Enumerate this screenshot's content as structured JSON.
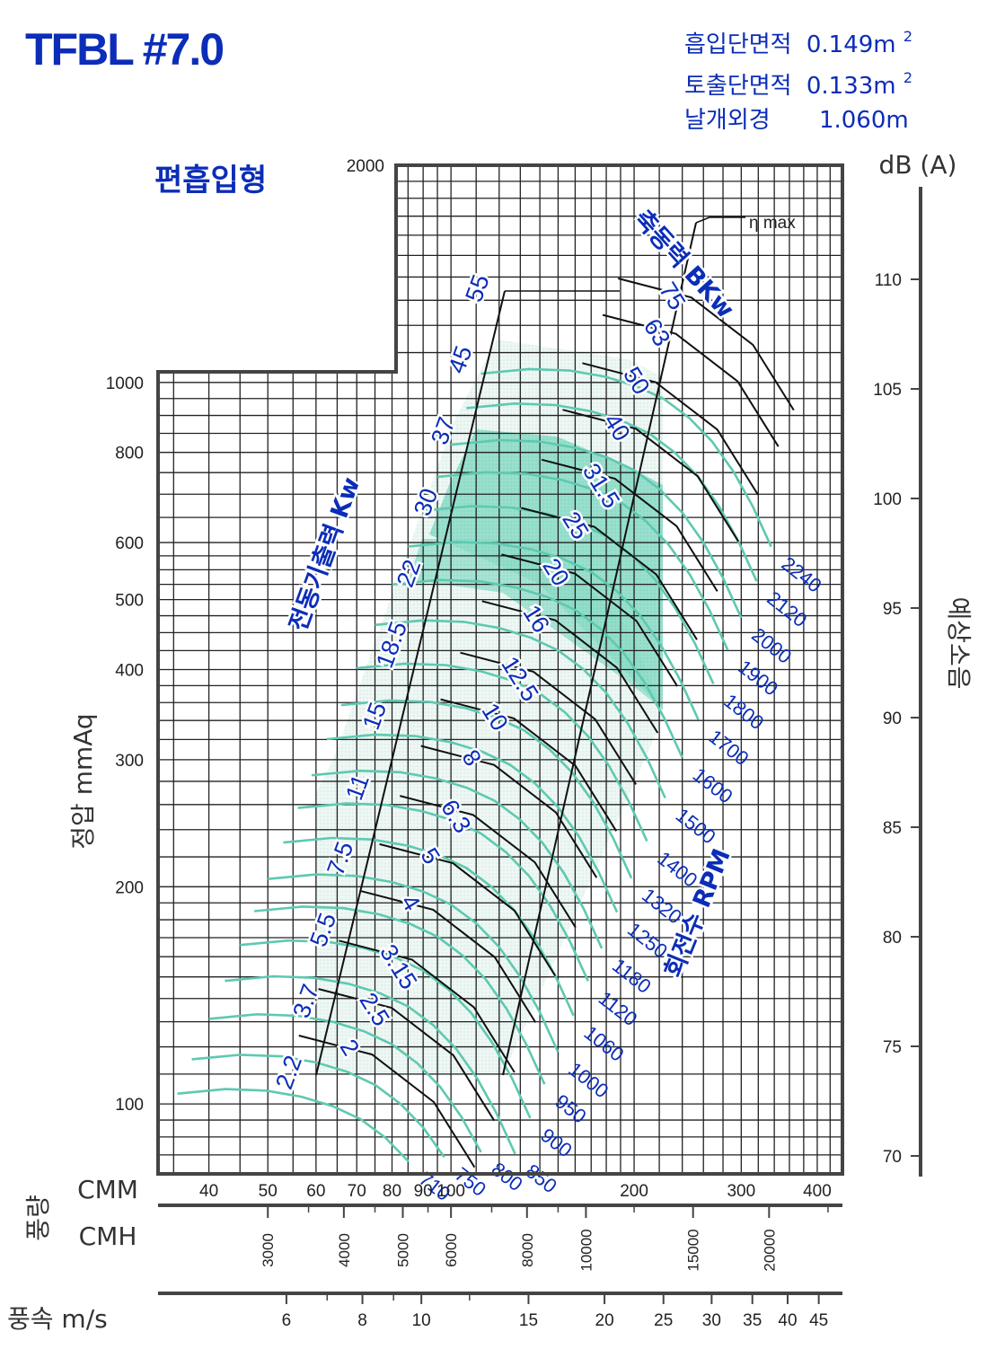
{
  "title": "TFBL #7.0",
  "specs": [
    {
      "label": "흡입단면적",
      "value": "0.149m",
      "sup": "2"
    },
    {
      "label": "토출단면적",
      "value": "0.133m",
      "sup": "2"
    },
    {
      "label": "날개외경",
      "value": "1.060m",
      "sup": ""
    }
  ],
  "fan_type": "편흡입형",
  "chart_data": {
    "type": "line",
    "title": "TFBL #7.0",
    "xlabel": "풍량",
    "x_units": [
      "CMM",
      "CMH"
    ],
    "ylabel": "정압 mmAq",
    "y2label": "예상소음",
    "y2_unit": "dB (A)",
    "x_scale": "log",
    "y_scale": "log",
    "xlim": [
      33,
      440
    ],
    "ylim": [
      80,
      2000
    ],
    "y2lim": [
      69,
      116
    ],
    "x_ticks_cmm": [
      40,
      50,
      60,
      70,
      80,
      90,
      100,
      200,
      300,
      400
    ],
    "x_ticks_cmh": [
      3000,
      4000,
      5000,
      6000,
      8000,
      10000,
      15000,
      20000
    ],
    "x_ticks_velocity_label": "풍속 m/s",
    "x_ticks_velocity": [
      6,
      8,
      10,
      15,
      20,
      25,
      30,
      35,
      40,
      45
    ],
    "y_ticks": [
      100,
      200,
      300,
      400,
      500,
      600,
      800,
      1000,
      2000
    ],
    "y2_ticks": [
      70,
      75,
      80,
      85,
      90,
      95,
      100,
      105,
      110
    ],
    "grid": true,
    "rpm_label": "회전수 RPM",
    "rpm_curves": [
      710,
      750,
      800,
      850,
      900,
      950,
      1000,
      1060,
      1120,
      1180,
      1250,
      1320,
      1400,
      1500,
      1600,
      1700,
      1800,
      1900,
      2000,
      2120,
      2240
    ],
    "shaft_power_label": "축동력 BKw",
    "shaft_power_kw": [
      2.0,
      2.5,
      3.15,
      4.0,
      5.0,
      6.3,
      8.0,
      10,
      12.5,
      16,
      20,
      25,
      31.5,
      40,
      50,
      63,
      75
    ],
    "motor_output_label": "전동기출력 Kw",
    "motor_output_kw": [
      2.2,
      3.7,
      5.5,
      7.5,
      11,
      15,
      18.5,
      22,
      30,
      37,
      45,
      55
    ],
    "efficiency_label": "η max"
  },
  "colors": {
    "blue": "#0b2db8",
    "rpm_curve": "#5ec9b0",
    "shade": "#8fdcc9",
    "grid": "#222222"
  }
}
